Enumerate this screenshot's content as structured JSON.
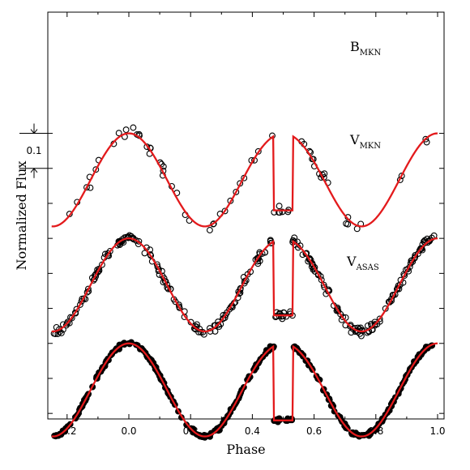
{
  "chart_data": {
    "type": "scatter",
    "xlabel": "Phase",
    "ylabel": "Normalized Flux",
    "xlim": [
      -0.25,
      1.0
    ],
    "x_ticks": [
      -0.2,
      0.0,
      0.2,
      0.4,
      0.6,
      0.8,
      1.0
    ],
    "x_tick_labels": [
      "-0.2",
      "0.0",
      "0.2",
      "0.4",
      "0.6",
      "0.8",
      "1.0"
    ],
    "y_unlabeled": true,
    "scale_bar": {
      "label": "0.1",
      "length_flux": 0.1
    },
    "model": {
      "color": "#e31a1c",
      "max_flux": 1.0,
      "primary_min_flux": 0.73,
      "secondary_min_flux": 0.78,
      "secondary_min_flat_half_width": 0.03
    },
    "series": [
      {
        "name": "B",
        "subscript": "MKN",
        "marker": "open-circle",
        "flux_offset": 0.3,
        "scatter": 0.016,
        "n_points": 70
      },
      {
        "name": "V",
        "subscript": "MKN",
        "marker": "open-circle",
        "flux_offset": 0.0,
        "scatter": 0.011,
        "n_points": 300
      },
      {
        "name": "V",
        "subscript": "ASAS",
        "marker": "filled-circle",
        "flux_offset": -0.3,
        "scatter": 0.005,
        "n_points": 360
      }
    ]
  }
}
